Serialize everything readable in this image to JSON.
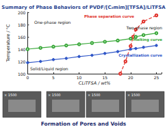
{
  "chart_data": {
    "type": "line",
    "title": "Summary of Phase Behaviors of PVDF/[C₂mim][TFSA]/LiTFSA",
    "x_label": "CLiTFSA / wt%",
    "y_label": "Temperature / °C",
    "xlim": [
      0,
      26
    ],
    "xticks": [
      0,
      5,
      10,
      15,
      20,
      25
    ],
    "ylim": [
      100,
      200
    ],
    "yticks": [
      100,
      120,
      140,
      160,
      180,
      200
    ],
    "grid": false,
    "series": [
      {
        "name": "Phase separation curve",
        "color": "#e0302a",
        "marker": "open_circle",
        "line_style": "dashed",
        "x": [
          18,
          19,
          20,
          20.5,
          21,
          22.5,
          25
        ],
        "values": [
          100,
          120,
          145,
          160,
          172,
          185,
          195
        ]
      },
      {
        "name": "Melting curve",
        "color": "#3aa83a",
        "marker": "open_circle",
        "line_style": "solid",
        "x": [
          0,
          2.5,
          5,
          7.5,
          10,
          12.5,
          15,
          17.5,
          20,
          21,
          22.5,
          25
        ],
        "values": [
          140,
          142,
          144,
          146,
          148,
          150,
          152,
          154,
          157,
          160,
          163,
          166
        ]
      },
      {
        "name": "Crystallization curve",
        "color": "#2f56c8",
        "marker": "circle",
        "line_style": "solid",
        "x": [
          0,
          2.5,
          5,
          7.5,
          10,
          12.5,
          15,
          17.5,
          20,
          21,
          22.5,
          25
        ],
        "values": [
          118,
          120,
          123,
          125,
          128,
          130,
          133,
          136,
          140,
          141,
          143,
          146
        ]
      }
    ],
    "annotations": [
      "One-phase region",
      "Two-phase region",
      "Solid/Liquid region"
    ]
  },
  "images": [
    {
      "label": "× 1500"
    },
    {
      "label": "× 1500"
    },
    {
      "label": "× 1500"
    },
    {
      "label": "× 1500"
    }
  ],
  "caption": "Formation of Pores and Voids"
}
